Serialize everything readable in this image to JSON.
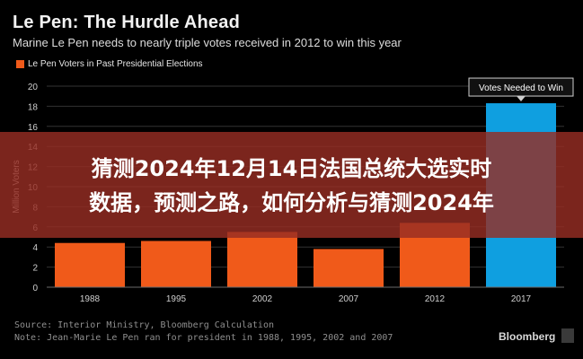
{
  "header": {
    "title": "Le Pen: The Hurdle Ahead",
    "subtitle": "Marine Le Pen needs to nearly triple votes received in 2012 to win this year"
  },
  "chart_data": {
    "type": "bar",
    "categories": [
      "1988",
      "1995",
      "2002",
      "2007",
      "2012",
      "2017"
    ],
    "values": [
      4.4,
      4.6,
      5.5,
      3.8,
      6.4,
      18.3
    ],
    "series": [
      {
        "name": "Le Pen Voters in Past Presidential Elections",
        "values": [
          4.4,
          4.6,
          5.5,
          3.8,
          6.4,
          null
        ]
      },
      {
        "name": "Votes Needed to Win",
        "values": [
          null,
          null,
          null,
          null,
          null,
          18.3
        ]
      }
    ],
    "ylabel": "Million Voters",
    "ylim": [
      0,
      20
    ],
    "yticks": [
      "0",
      "2",
      "4",
      "6",
      "8",
      "10",
      "12",
      "14",
      "16",
      "18",
      "20"
    ],
    "annotation": "Votes Needed to Win",
    "grid": true,
    "legend": "top-left"
  },
  "colors": {
    "past_bar": "#f05a1a",
    "needed_bar": "#0f9fe0",
    "grid": "#333333"
  },
  "overlay": {
    "line1": "猜测2024年12月14日法国总统大选实时",
    "line2": "数据，预测之路，如何分析与猜测2024年"
  },
  "footer": {
    "source": "Source: Interior Ministry, Bloomberg Calculation",
    "note": "Note: Jean-Marie Le Pen ran for president in 1988, 1995, 2002 and 2007",
    "brand": "Bloomberg"
  }
}
